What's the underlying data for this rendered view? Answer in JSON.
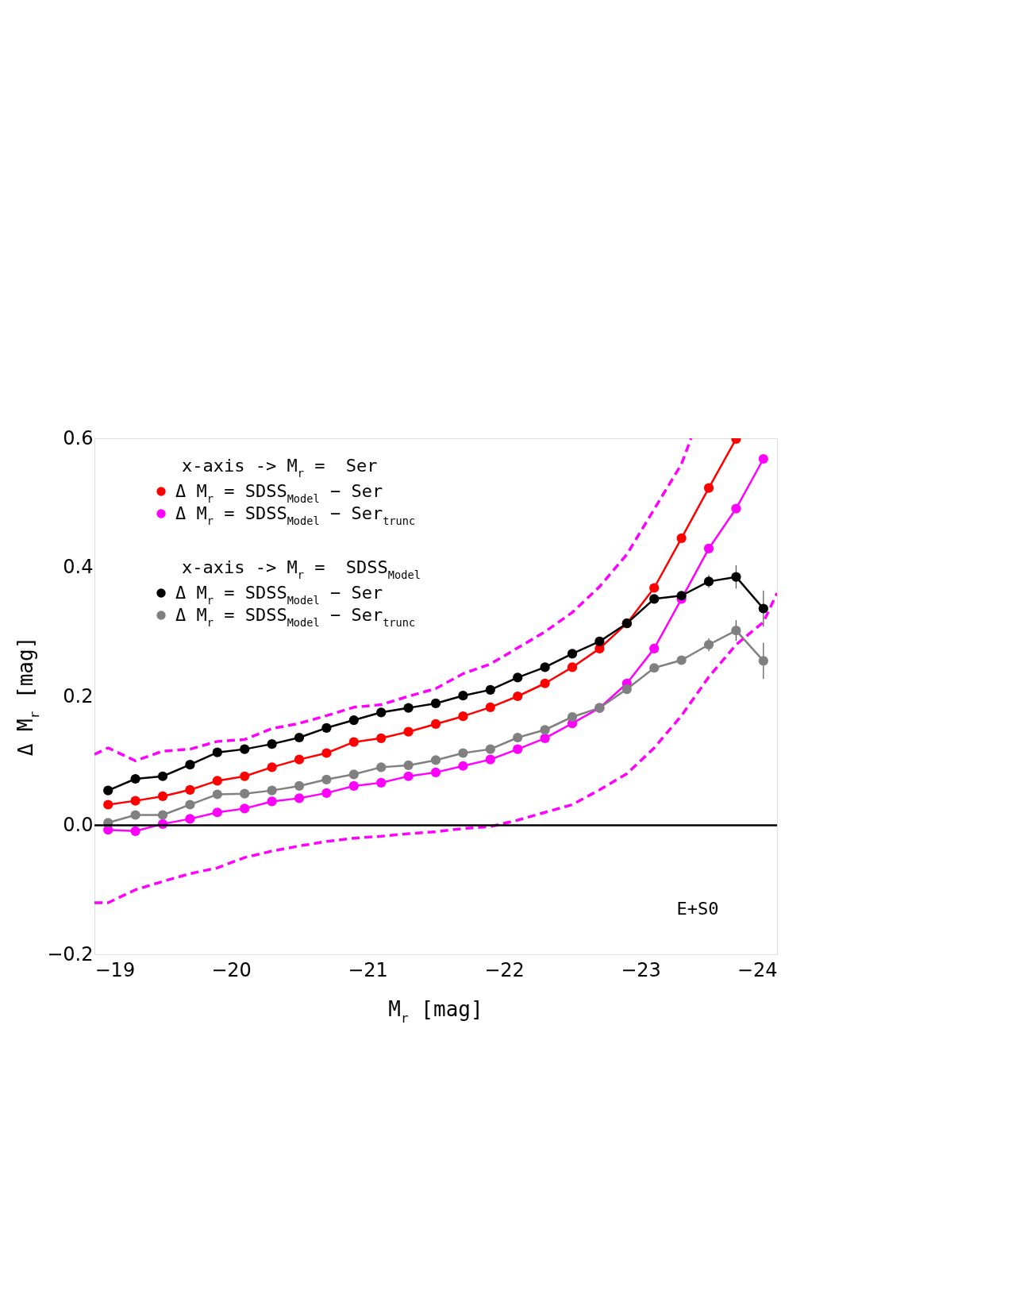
{
  "chart_data": {
    "type": "line",
    "xlabel": "M$_{r}$ [mag]",
    "ylabel": "Δ M$_{r}$ [mag]",
    "xlim": [
      -19,
      -24
    ],
    "ylim": [
      -0.2,
      0.6
    ],
    "xticks": [
      {
        "value": -19,
        "label": "−19"
      },
      {
        "value": -20,
        "label": "−20"
      },
      {
        "value": -21,
        "label": "−21"
      },
      {
        "value": -22,
        "label": "−22"
      },
      {
        "value": -23,
        "label": "−23"
      },
      {
        "value": -24,
        "label": "−24"
      }
    ],
    "yticks": [
      {
        "value": -0.2,
        "label": "−0.2"
      },
      {
        "value": 0,
        "label": "0.0"
      },
      {
        "value": 0.2,
        "label": "0.2"
      },
      {
        "value": 0.4,
        "label": "0.4"
      },
      {
        "value": 0.6,
        "label": "0.6"
      }
    ],
    "x": [
      -19.1,
      -19.3,
      -19.5,
      -19.7,
      -19.9,
      -20.1,
      -20.3,
      -20.5,
      -20.7,
      -20.9,
      -21.1,
      -21.3,
      -21.5,
      -21.7,
      -21.9,
      -22.1,
      -22.3,
      -22.5,
      -22.7,
      -22.9,
      -23.1,
      -23.3,
      -23.5,
      -23.7,
      -23.9
    ],
    "marker": "circle",
    "legend": "top left",
    "grid": false,
    "series": [
      {
        "name": "Δ M$_{r}$ = SDSS$_{Model}$ − Ser",
        "color": "#ff0000",
        "values": [
          0.032,
          0.038,
          0.045,
          0.055,
          0.069,
          0.076,
          0.09,
          0.102,
          0.112,
          0.129,
          0.135,
          0.145,
          0.157,
          0.169,
          0.183,
          0.2,
          0.22,
          0.245,
          0.274,
          0.313,
          0.368,
          0.445,
          0.523,
          0.599,
          null
        ]
      },
      {
        "name": "Δ M$_{r}$ = SDSS$_{Model}$ − Ser$_{trunc}$",
        "color": "#ff00ff",
        "values": [
          -0.007,
          -0.009,
          0.002,
          0.01,
          0.02,
          0.026,
          0.037,
          0.042,
          0.05,
          0.061,
          0.066,
          0.076,
          0.082,
          0.092,
          0.102,
          0.118,
          0.135,
          0.158,
          0.182,
          0.22,
          0.274,
          0.351,
          0.429,
          0.491,
          0.568
        ]
      },
      {
        "name": "Δ M$_{r}$ = SDSS$_{Model}$ − Ser",
        "color": "#000000",
        "values": [
          0.054,
          0.072,
          0.076,
          0.094,
          0.113,
          0.118,
          0.126,
          0.136,
          0.151,
          0.163,
          0.175,
          0.182,
          0.189,
          0.201,
          0.21,
          0.229,
          0.245,
          0.266,
          0.285,
          0.313,
          0.351,
          0.356,
          0.378,
          0.385,
          0.336
        ],
        "errors": [
          null,
          null,
          null,
          null,
          null,
          null,
          null,
          null,
          null,
          null,
          null,
          null,
          null,
          null,
          null,
          null,
          null,
          null,
          null,
          null,
          null,
          null,
          0.01,
          0.018,
          0.028
        ]
      },
      {
        "name": "Δ M$_{r}$ = SDSS$_{Model}$ − Ser$_{trunc}$",
        "color": "#808080",
        "values": [
          0.004,
          0.016,
          0.016,
          0.032,
          0.048,
          0.049,
          0.054,
          0.061,
          0.071,
          0.079,
          0.09,
          0.093,
          0.101,
          0.112,
          0.118,
          0.136,
          0.148,
          0.168,
          0.182,
          0.211,
          0.244,
          0.256,
          0.28,
          0.302,
          0.255
        ],
        "errors": [
          null,
          null,
          null,
          null,
          null,
          null,
          null,
          null,
          null,
          null,
          null,
          null,
          null,
          null,
          null,
          null,
          null,
          null,
          null,
          null,
          null,
          null,
          0.01,
          0.016,
          0.028
        ]
      },
      {
        "type": "line",
        "color": "#ff00ff",
        "line_style": "dashed",
        "marker": "none",
        "x": [
          -19,
          -19.1,
          -19.3,
          -19.5,
          -19.7,
          -19.9,
          -20.1,
          -20.3,
          -20.5,
          -20.7,
          -20.9,
          -21.1,
          -21.3,
          -21.5,
          -21.7,
          -21.9,
          -22.1,
          -22.3,
          -22.5,
          -22.7,
          -22.9,
          -23.1,
          -23.3,
          -23.37
        ],
        "values": [
          0.11,
          0.12,
          0.1,
          0.115,
          0.118,
          0.13,
          0.133,
          0.15,
          0.158,
          0.17,
          0.183,
          0.187,
          0.2,
          0.212,
          0.235,
          0.25,
          0.275,
          0.3,
          0.33,
          0.37,
          0.42,
          0.49,
          0.56,
          0.6
        ]
      },
      {
        "type": "line",
        "color": "#ff00ff",
        "line_style": "dashed",
        "marker": "none",
        "x": [
          -19,
          -19.1,
          -19.3,
          -19.5,
          -19.7,
          -19.9,
          -20.1,
          -20.3,
          -20.5,
          -20.7,
          -20.9,
          -21.1,
          -21.3,
          -21.5,
          -21.7,
          -21.9,
          -22.1,
          -22.3,
          -22.5,
          -22.7,
          -22.9,
          -23.1,
          -23.3,
          -23.5,
          -23.7,
          -23.9,
          -24
        ],
        "values": [
          -0.12,
          -0.12,
          -0.1,
          -0.087,
          -0.075,
          -0.066,
          -0.05,
          -0.04,
          -0.032,
          -0.025,
          -0.02,
          -0.017,
          -0.013,
          -0.01,
          -0.005,
          -0.002,
          0.008,
          0.02,
          0.032,
          0.055,
          0.08,
          0.12,
          0.17,
          0.23,
          0.28,
          0.315,
          0.36
        ]
      }
    ],
    "ref_lines": [
      {
        "axis": "y",
        "value": 0,
        "color": "#000000"
      }
    ],
    "annotations": [
      "x-axis -> M$_{r}$ =  Ser",
      "x-axis -> M$_{r}$ =  SDSS$_{Model}$",
      "E+S0"
    ]
  }
}
